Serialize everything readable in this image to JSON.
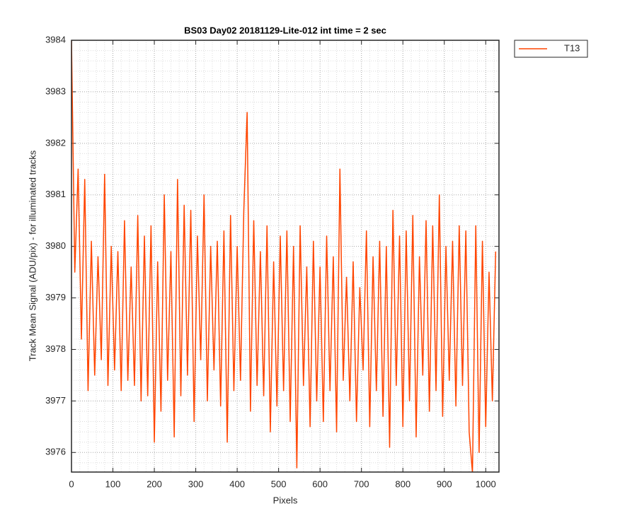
{
  "chart_data": {
    "type": "line",
    "title": "BS03 Day02 20181129-Lite-012 int time = 2 sec",
    "xlabel": "Pixels",
    "ylabel": "Track Mean Signal (ADU/pix) - for illuminated tracks",
    "x": [
      0,
      8,
      16,
      24,
      32,
      40,
      48,
      56,
      64,
      72,
      80,
      88,
      96,
      104,
      112,
      120,
      128,
      136,
      144,
      152,
      160,
      168,
      176,
      184,
      192,
      200,
      208,
      216,
      224,
      232,
      240,
      248,
      256,
      264,
      272,
      280,
      288,
      296,
      304,
      312,
      320,
      328,
      336,
      344,
      352,
      360,
      368,
      376,
      384,
      392,
      400,
      408,
      416,
      424,
      432,
      440,
      448,
      456,
      464,
      472,
      480,
      488,
      496,
      504,
      512,
      520,
      528,
      536,
      544,
      552,
      560,
      568,
      576,
      584,
      592,
      600,
      608,
      616,
      624,
      632,
      640,
      648,
      656,
      664,
      672,
      680,
      688,
      696,
      704,
      712,
      720,
      728,
      736,
      744,
      752,
      760,
      768,
      776,
      784,
      792,
      800,
      808,
      816,
      824,
      832,
      840,
      848,
      856,
      864,
      872,
      880,
      888,
      896,
      904,
      912,
      920,
      928,
      936,
      944,
      952,
      960,
      968,
      976,
      984,
      992,
      1000,
      1008,
      1016,
      1024
    ],
    "series": [
      {
        "name": "T13",
        "color": "#ff4500",
        "values": [
          3984.0,
          3979.5,
          3981.5,
          3978.2,
          3981.3,
          3977.2,
          3980.1,
          3977.5,
          3979.8,
          3977.8,
          3981.4,
          3977.3,
          3980.0,
          3977.6,
          3979.9,
          3977.2,
          3980.5,
          3977.4,
          3979.6,
          3977.3,
          3980.6,
          3977.0,
          3980.2,
          3977.1,
          3980.4,
          3976.2,
          3979.7,
          3976.8,
          3981.0,
          3977.4,
          3979.9,
          3976.3,
          3981.3,
          3977.1,
          3980.8,
          3977.5,
          3980.7,
          3976.6,
          3980.2,
          3977.8,
          3981.0,
          3977.0,
          3980.0,
          3977.6,
          3980.1,
          3976.9,
          3980.3,
          3976.2,
          3980.6,
          3977.2,
          3980.0,
          3977.4,
          3980.7,
          3982.6,
          3976.8,
          3980.5,
          3977.3,
          3979.9,
          3977.1,
          3980.4,
          3976.4,
          3979.7,
          3976.9,
          3980.2,
          3977.2,
          3980.3,
          3976.6,
          3980.0,
          3975.7,
          3980.4,
          3977.3,
          3979.6,
          3976.5,
          3980.1,
          3977.0,
          3979.6,
          3976.6,
          3980.2,
          3977.2,
          3979.8,
          3976.4,
          3981.5,
          3977.4,
          3979.4,
          3977.0,
          3979.7,
          3976.6,
          3979.2,
          3977.6,
          3980.3,
          3976.5,
          3979.8,
          3977.2,
          3980.1,
          3976.7,
          3980.0,
          3976.1,
          3980.7,
          3977.3,
          3980.2,
          3976.5,
          3980.3,
          3977.0,
          3980.6,
          3976.3,
          3979.8,
          3977.5,
          3980.5,
          3976.8,
          3980.4,
          3977.2,
          3981.0,
          3976.7,
          3980.0,
          3977.4,
          3980.1,
          3976.9,
          3980.4,
          3977.3,
          3980.3,
          3976.4,
          3975.6,
          3980.4,
          3976.0,
          3980.1,
          3976.5,
          3979.5,
          3977.0,
          3979.9
        ]
      }
    ],
    "xlim": [
      0,
      1032
    ],
    "xticks": [
      0,
      100,
      200,
      300,
      400,
      500,
      600,
      700,
      800,
      900,
      1000
    ],
    "ylim": [
      3975.62,
      3984
    ],
    "yticks": [
      3976,
      3977,
      3978,
      3979,
      3980,
      3981,
      3982,
      3983,
      3984
    ],
    "grid": true,
    "minor_grid": true,
    "legend": "northeastoutside"
  }
}
